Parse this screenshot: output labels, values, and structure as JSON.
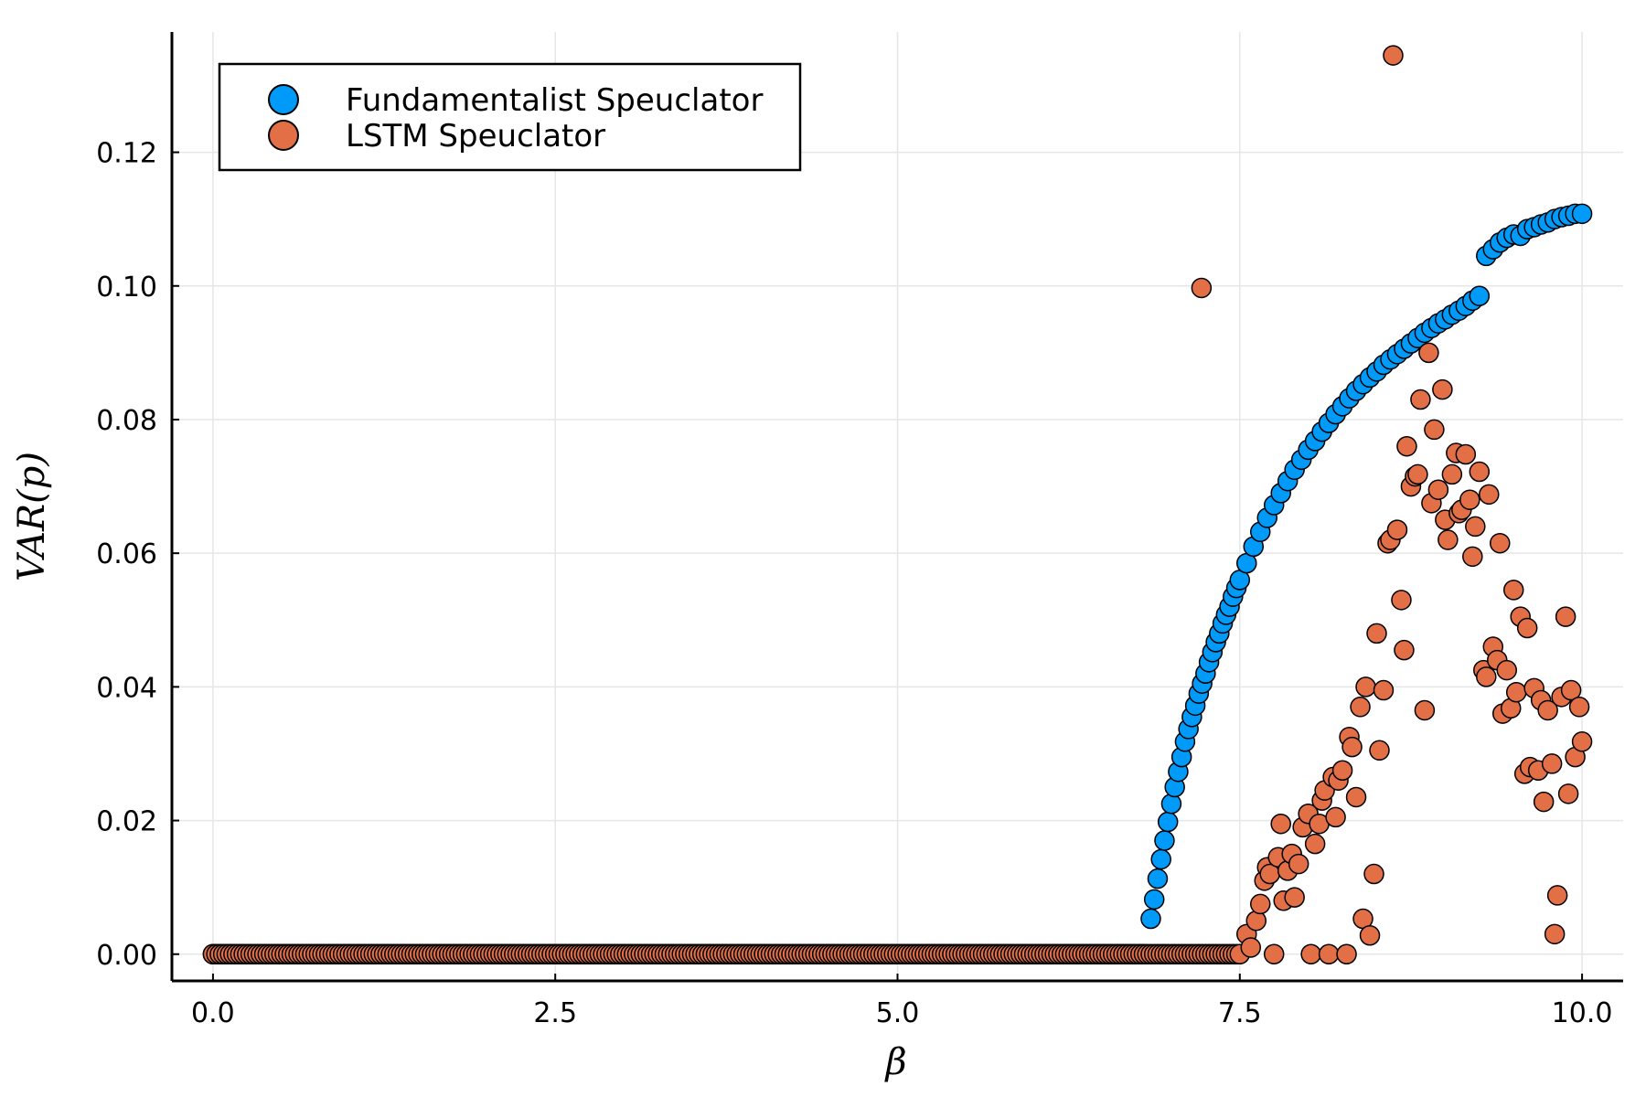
{
  "chart_data": {
    "type": "scatter",
    "title": "",
    "xlabel": "β",
    "ylabel": "VAR(p)",
    "xlim": [
      -0.3,
      10.3
    ],
    "ylim": [
      -0.004,
      0.138
    ],
    "x_ticks": [
      "0.0",
      "2.5",
      "5.0",
      "7.5",
      "10.0"
    ],
    "x_tick_values": [
      0.0,
      2.5,
      5.0,
      7.5,
      10.0
    ],
    "y_ticks": [
      "0.00",
      "0.02",
      "0.04",
      "0.06",
      "0.08",
      "0.10",
      "0.12"
    ],
    "y_tick_values": [
      0.0,
      0.02,
      0.04,
      0.06,
      0.08,
      0.1,
      0.12
    ],
    "grid": true,
    "legend_position": "top-left",
    "series": [
      {
        "name": "Fundamentalist Speuclator",
        "color": "#009af9",
        "x_zero_range": [
          0.0,
          6.8
        ],
        "x": [
          6.85,
          6.875,
          6.9,
          6.925,
          6.95,
          6.975,
          7.0,
          7.025,
          7.05,
          7.075,
          7.1,
          7.125,
          7.15,
          7.175,
          7.2,
          7.225,
          7.25,
          7.275,
          7.3,
          7.325,
          7.35,
          7.375,
          7.4,
          7.425,
          7.45,
          7.475,
          7.5,
          7.55,
          7.6,
          7.65,
          7.7,
          7.75,
          7.8,
          7.85,
          7.9,
          7.95,
          8.0,
          8.05,
          8.1,
          8.15,
          8.2,
          8.25,
          8.3,
          8.35,
          8.4,
          8.45,
          8.5,
          8.55,
          8.6,
          8.65,
          8.7,
          8.75,
          8.8,
          8.85,
          8.9,
          8.95,
          9.0,
          9.05,
          9.1,
          9.15,
          9.2,
          9.25,
          9.3,
          9.35,
          9.4,
          9.45,
          9.5,
          9.55,
          9.6,
          9.65,
          9.7,
          9.75,
          9.8,
          9.85,
          9.9,
          9.95,
          10.0
        ],
        "y": [
          0.0053,
          0.0082,
          0.0113,
          0.0142,
          0.017,
          0.0198,
          0.0225,
          0.025,
          0.0273,
          0.0295,
          0.0318,
          0.0337,
          0.0355,
          0.0372,
          0.039,
          0.0405,
          0.042,
          0.0437,
          0.0452,
          0.0467,
          0.048,
          0.0495,
          0.0508,
          0.052,
          0.0535,
          0.0548,
          0.056,
          0.0585,
          0.061,
          0.0632,
          0.0653,
          0.0672,
          0.069,
          0.0708,
          0.0725,
          0.074,
          0.0755,
          0.0768,
          0.0782,
          0.0795,
          0.0808,
          0.082,
          0.0832,
          0.0843,
          0.0853,
          0.0863,
          0.0872,
          0.0882,
          0.089,
          0.0898,
          0.0906,
          0.0914,
          0.0922,
          0.093,
          0.0937,
          0.0944,
          0.095,
          0.0957,
          0.0963,
          0.097,
          0.0978,
          0.0985,
          0.1045,
          0.1055,
          0.1065,
          0.1072,
          0.1077,
          0.1075,
          0.1085,
          0.1088,
          0.1092,
          0.1095,
          0.11,
          0.1103,
          0.1105,
          0.1108,
          0.1108
        ]
      },
      {
        "name": "LSTM Speuclator",
        "color": "#e26f46",
        "x_zero_range": [
          0.0,
          7.5
        ],
        "x": [
          7.22,
          7.55,
          7.58,
          7.62,
          7.65,
          7.68,
          7.7,
          7.72,
          7.75,
          7.78,
          7.8,
          7.82,
          7.85,
          7.88,
          7.9,
          7.93,
          7.96,
          8.0,
          8.02,
          8.05,
          8.08,
          8.1,
          8.12,
          8.15,
          8.18,
          8.2,
          8.22,
          8.25,
          8.28,
          8.3,
          8.32,
          8.35,
          8.38,
          8.4,
          8.42,
          8.45,
          8.48,
          8.5,
          8.52,
          8.55,
          8.58,
          8.6,
          8.62,
          8.65,
          8.68,
          8.7,
          8.72,
          8.75,
          8.78,
          8.8,
          8.82,
          8.85,
          8.88,
          8.9,
          8.92,
          8.95,
          8.98,
          9.0,
          9.02,
          9.05,
          9.08,
          9.1,
          9.12,
          9.15,
          9.18,
          9.2,
          9.22,
          9.25,
          9.28,
          9.3,
          9.32,
          9.35,
          9.38,
          9.4,
          9.42,
          9.45,
          9.48,
          9.5,
          9.52,
          9.55,
          9.58,
          9.6,
          9.62,
          9.65,
          9.68,
          9.7,
          9.72,
          9.75,
          9.78,
          9.8,
          9.82,
          9.85,
          9.88,
          9.9,
          9.92,
          9.95,
          9.98,
          10.0
        ],
        "y": [
          0.0997,
          0.003,
          0.001,
          0.005,
          0.0075,
          0.011,
          0.013,
          0.012,
          0.0,
          0.0145,
          0.0195,
          0.008,
          0.0125,
          0.015,
          0.0085,
          0.0135,
          0.019,
          0.021,
          0.0,
          0.0165,
          0.0195,
          0.023,
          0.0245,
          0.0,
          0.0265,
          0.0205,
          0.026,
          0.0275,
          0.0,
          0.0325,
          0.031,
          0.0235,
          0.037,
          0.0053,
          0.04,
          0.0028,
          0.012,
          0.048,
          0.0305,
          0.0395,
          0.0615,
          0.062,
          0.1345,
          0.0635,
          0.053,
          0.0455,
          0.076,
          0.07,
          0.0715,
          0.0718,
          0.083,
          0.0365,
          0.09,
          0.0675,
          0.0785,
          0.0695,
          0.0845,
          0.065,
          0.062,
          0.0718,
          0.075,
          0.066,
          0.0665,
          0.0748,
          0.068,
          0.0595,
          0.064,
          0.0722,
          0.0425,
          0.0415,
          0.0688,
          0.046,
          0.044,
          0.0615,
          0.036,
          0.0425,
          0.0368,
          0.0545,
          0.0392,
          0.0505,
          0.027,
          0.0488,
          0.028,
          0.0398,
          0.0275,
          0.038,
          0.0228,
          0.0365,
          0.0285,
          0.003,
          0.0088,
          0.0385,
          0.0505,
          0.024,
          0.0395,
          0.0295,
          0.037,
          0.0318
        ]
      }
    ]
  },
  "legend": {
    "items": [
      {
        "label": "Fundamentalist Speuclator",
        "color": "#009af9"
      },
      {
        "label": "LSTM Speuclator",
        "color": "#e26f46"
      }
    ]
  }
}
